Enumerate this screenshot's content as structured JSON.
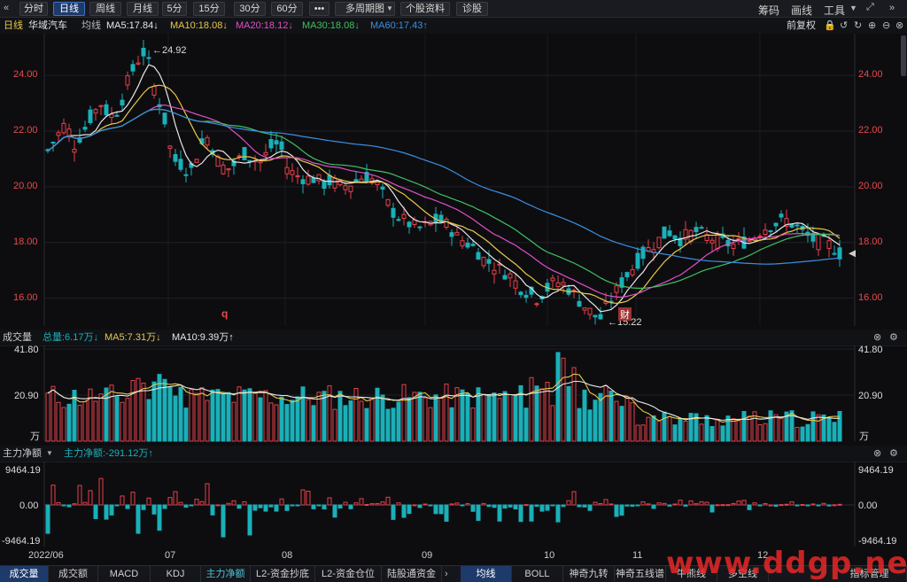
{
  "toolbar": {
    "back_icon": "double-chevron-left-icon",
    "tabs": [
      "分时",
      "日线",
      "周线",
      "月线",
      "5分",
      "15分",
      "30分",
      "60分",
      "•••",
      "多周期图",
      "个股资料",
      "诊股"
    ],
    "active_tab": "日线",
    "right_items": [
      "筹码",
      "画线",
      "工具"
    ],
    "more_icon": "double-chevron-right-icon"
  },
  "header": {
    "period": "日线",
    "stock_name": "华域汽车",
    "ma_label": "均线",
    "ma5": "MA5:17.84↓",
    "ma10": "MA10:18.08↓",
    "ma20": "MA20:18.12↓",
    "ma30": "MA30:18.08↓",
    "ma60": "MA60:17.43↑",
    "adjust": "前复权"
  },
  "price_axis": {
    "ticks": [
      "24.00",
      "22.00",
      "20.00",
      "18.00",
      "16.00"
    ],
    "high_label": "24.92",
    "low_label": "15.22",
    "marker_q": "q",
    "marker_cai": "财"
  },
  "volume_panel": {
    "title": "成交量",
    "total": "总量:6.17万↓",
    "ma5": "MA5:7.31万↓",
    "ma10": "MA10:9.39万↑",
    "ticks": [
      "41.80",
      "20.90",
      "万"
    ]
  },
  "flow_panel": {
    "title": "主力净额",
    "value": "主力净额:-291.12万↑",
    "ticks": [
      "9464.19",
      "0.00",
      "-9464.19"
    ]
  },
  "x_axis": {
    "labels": [
      "2022/06",
      "07",
      "08",
      "09",
      "10",
      "11",
      "12"
    ]
  },
  "bottom_tabs": [
    "成交量",
    "成交额",
    "MACD",
    "KDJ",
    "主力净额",
    "L2-资金抄底",
    "L2-资金仓位",
    "陆股通资金"
  ],
  "bottom_tabs_right": [
    "均线",
    "BOLL",
    "神奇九转",
    "神奇五线谱",
    "牛熊线",
    "多空线",
    "指标管理"
  ],
  "watermark": "www.ddgp.net",
  "colors": {
    "up": "#e8404a",
    "down": "#1ab0b8",
    "ma5": "#e8e8e8",
    "ma10": "#e8c84a",
    "ma20": "#e050c8",
    "ma30": "#40c060",
    "ma60": "#3b8fe0",
    "axis_red": "#e84a4a"
  },
  "chart_data": {
    "type": "candlestick",
    "title": "华域汽车 日线",
    "ylim": [
      15.0,
      25.5
    ],
    "x_months": [
      "2022/06",
      "07",
      "08",
      "09",
      "10",
      "11",
      "12"
    ],
    "close_path": [
      21.3,
      21.8,
      22.3,
      21.5,
      22.0,
      22.6,
      23.0,
      22.5,
      22.8,
      23.8,
      24.5,
      24.92,
      23.5,
      22.6,
      21.0,
      20.8,
      20.5,
      21.4,
      21.8,
      21.0,
      20.6,
      20.8,
      21.2,
      21.0,
      20.9,
      21.4,
      21.6,
      20.6,
      20.4,
      20.3,
      20.3,
      20.1,
      20.2,
      20.0,
      20.1,
      20.3,
      20.4,
      20.1,
      19.5,
      19.0,
      18.8,
      18.6,
      18.5,
      18.7,
      18.8,
      18.6,
      18.2,
      18.0,
      17.8,
      17.4,
      17.2,
      17.0,
      16.8,
      16.4,
      16.2,
      16.0,
      16.3,
      16.6,
      16.5,
      16.2,
      15.8,
      15.5,
      15.22,
      15.8,
      16.3,
      16.8,
      17.2,
      17.6,
      17.9,
      18.2,
      18.4,
      18.1,
      18.3,
      18.4,
      18.2,
      18.1,
      18.0,
      17.9,
      18.0,
      18.1,
      18.4,
      18.6,
      18.7,
      18.8,
      18.6,
      18.3,
      18.1,
      18.0,
      17.9,
      17.6
    ],
    "volume_ylim": [
      0,
      41.8
    ],
    "volume_unit": "万",
    "flow_ylim": [
      -9464.19,
      9464.19
    ]
  }
}
